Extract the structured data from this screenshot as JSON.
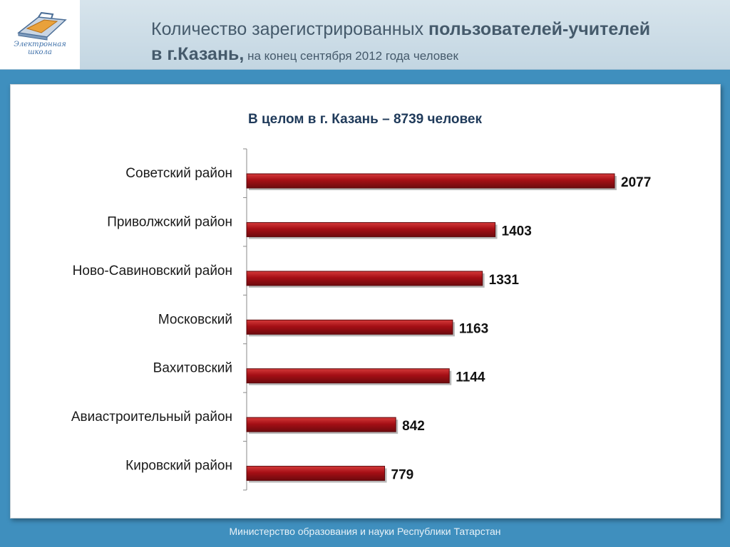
{
  "header": {
    "title_part1": "Количество зарегистрированных ",
    "title_part1_bold": "пользователей-учителей",
    "title_part2_bold": "в г.Казань,",
    "title_part2": " на конец сентября 2012 года человек",
    "logo_line1": "Электронная",
    "logo_line2": "школа"
  },
  "chart_data": {
    "type": "bar",
    "orientation": "horizontal",
    "title": "В целом в г. Казань – 8739 человек",
    "categories": [
      "Советский район",
      "Приволжский район",
      "Ново-Савиновский район",
      "Московский",
      "Вахитовский",
      "Авиастроительный район",
      "Кировский район"
    ],
    "values": [
      2077,
      1403,
      1331,
      1163,
      1144,
      842,
      779
    ],
    "bar_color": "#a50f15",
    "grid": false,
    "legend": "none"
  },
  "footer": {
    "text": "Министерство образования и науки  Республики Татарстан"
  }
}
